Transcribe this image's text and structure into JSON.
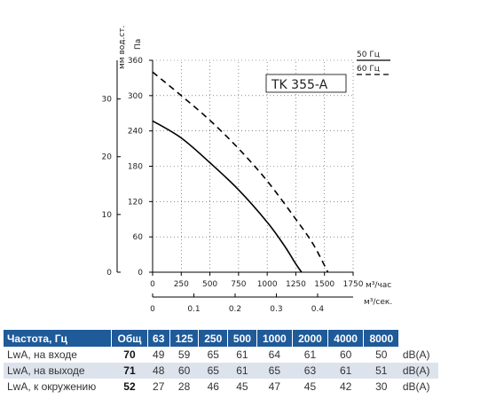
{
  "chart_data": {
    "type": "line",
    "title": "TK 355-A",
    "y_label_pa": "Па",
    "y_label_mm": "мм вод.ст.",
    "x_label_m3h": "м³/час",
    "x_label_m3s": "м³/сек.",
    "x_ticks_m3h": [
      "0",
      "250",
      "500",
      "750",
      "1000",
      "1250",
      "1500",
      "1750"
    ],
    "x_ticks_m3s": [
      "0",
      "0.1",
      "0.2",
      "0.3",
      "0.4"
    ],
    "y_ticks_pa": [
      "360",
      "300",
      "240",
      "180",
      "120",
      "60",
      "0"
    ],
    "y_ticks_mm": [
      "30",
      "20",
      "10",
      "0"
    ],
    "xlim_m3h": [
      0,
      1750
    ],
    "ylim_pa": [
      0,
      360
    ],
    "legend": [
      {
        "label": "50 Гц",
        "style": "solid"
      },
      {
        "label": "60 Гц",
        "style": "dashed"
      }
    ],
    "series": [
      {
        "name": "50 Гц",
        "style": "solid",
        "x": [
          0,
          250,
          500,
          750,
          1000,
          1150,
          1250,
          1300
        ],
        "y": [
          257,
          228,
          186,
          140,
          85,
          45,
          14,
          0
        ]
      },
      {
        "name": "60 Гц",
        "style": "dashed",
        "x": [
          0,
          250,
          500,
          750,
          1000,
          1250,
          1400,
          1530
        ],
        "y": [
          340,
          300,
          258,
          210,
          155,
          90,
          48,
          0
        ]
      }
    ]
  },
  "table": {
    "headers": [
      "Частота, Гц",
      "Общ",
      "63",
      "125",
      "250",
      "500",
      "1000",
      "2000",
      "4000",
      "8000"
    ],
    "rows": [
      {
        "label": "LwA, на входе",
        "total": "70",
        "values": [
          "49",
          "59",
          "65",
          "61",
          "64",
          "61",
          "60",
          "50"
        ],
        "unit": "dB(A)"
      },
      {
        "label": "LwA, на выходе",
        "total": "71",
        "values": [
          "48",
          "60",
          "65",
          "61",
          "65",
          "63",
          "61",
          "51"
        ],
        "unit": "dB(A)"
      },
      {
        "label": "LwA, к окружению",
        "total": "52",
        "values": [
          "27",
          "28",
          "46",
          "45",
          "47",
          "45",
          "42",
          "30"
        ],
        "unit": "dB(A)"
      }
    ]
  }
}
